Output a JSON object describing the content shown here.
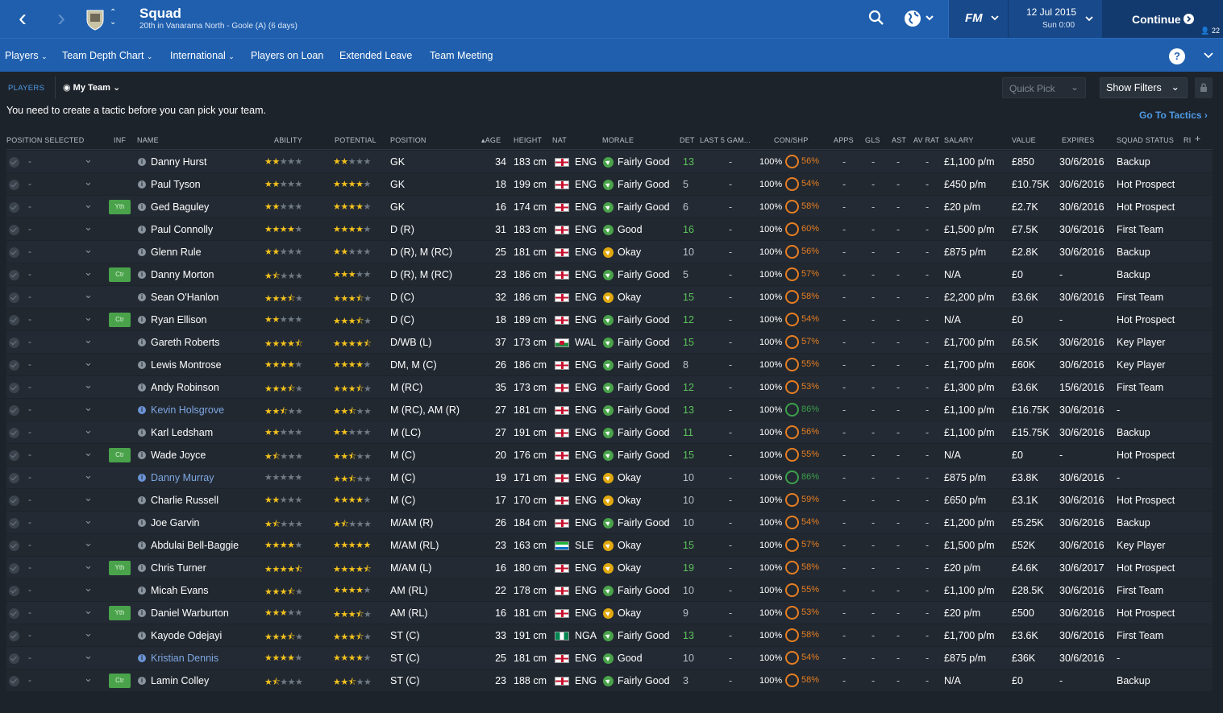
{
  "header": {
    "title": "Squad",
    "subtitle": "20th in Vanarama North - Goole (A) (6 days)",
    "fm_logo": "FM",
    "date": "12 Jul 2015",
    "time": "Sun 0:00",
    "continue_label": "Continue",
    "inbox_count": "22"
  },
  "subnav": {
    "items": [
      "Players",
      "Team Depth Chart",
      "International",
      "Players on Loan",
      "Extended Leave",
      "Team Meeting"
    ]
  },
  "toolbar": {
    "tab": "PLAYERS",
    "view": "My Team",
    "quick_pick": "Quick Pick",
    "show_filters": "Show Filters",
    "go_to_tactics": "Go To Tactics"
  },
  "notice": "You need to create a tactic before you can pick your team.",
  "columns": {
    "position_selected": "POSITION SELECTED",
    "inf": "INF",
    "name": "NAME",
    "ability": "ABILITY",
    "potential": "POTENTIAL",
    "position": "POSITION",
    "age": "AGE",
    "height": "HEIGHT",
    "nat": "NAT",
    "morale": "MORALE",
    "det": "DET",
    "last5": "LAST 5 GAM...",
    "conshp": "CON/SHP",
    "apps": "APPS",
    "gls": "GLS",
    "ast": "AST",
    "avrat": "AV RAT",
    "salary": "SALARY",
    "value": "VALUE",
    "expires": "EXPIRES",
    "squad_status": "SQUAD STATUS",
    "ri": "RI"
  },
  "players": [
    {
      "sel": "-",
      "tag": "",
      "name": "Danny Hurst",
      "loan": false,
      "ability": 2,
      "potential": 2,
      "position": "GK",
      "age": "34",
      "height": "183 cm",
      "flag": "eng",
      "nat": "ENG",
      "morale": "Fairly Good",
      "mood": "good",
      "det": "13",
      "last5": "-",
      "con": "100%",
      "shp": "56%",
      "shp_good": false,
      "apps": "-",
      "gls": "-",
      "ast": "-",
      "avrat": "-",
      "salary": "£1,100 p/m",
      "value": "£850",
      "expires": "30/6/2016",
      "status": "Backup"
    },
    {
      "sel": "-",
      "tag": "",
      "name": "Paul Tyson",
      "loan": false,
      "ability": 2,
      "potential": 4,
      "position": "GK",
      "age": "18",
      "height": "199 cm",
      "flag": "eng",
      "nat": "ENG",
      "morale": "Fairly Good",
      "mood": "good",
      "det": "5",
      "last5": "-",
      "con": "100%",
      "shp": "54%",
      "shp_good": false,
      "apps": "-",
      "gls": "-",
      "ast": "-",
      "avrat": "-",
      "salary": "£450 p/m",
      "value": "£10.75K",
      "expires": "30/6/2016",
      "status": "Hot Prospect"
    },
    {
      "sel": "-",
      "tag": "Yth",
      "name": "Ged Baguley",
      "loan": false,
      "ability": 2,
      "potential": 4,
      "position": "GK",
      "age": "16",
      "height": "174 cm",
      "flag": "eng",
      "nat": "ENG",
      "morale": "Fairly Good",
      "mood": "good",
      "det": "6",
      "last5": "-",
      "con": "100%",
      "shp": "58%",
      "shp_good": false,
      "apps": "-",
      "gls": "-",
      "ast": "-",
      "avrat": "-",
      "salary": "£20 p/m",
      "value": "£2.7K",
      "expires": "30/6/2016",
      "status": "Hot Prospect"
    },
    {
      "sel": "-",
      "tag": "",
      "name": "Paul Connolly",
      "loan": false,
      "ability": 4,
      "potential": 4,
      "position": "D (R)",
      "age": "31",
      "height": "183 cm",
      "flag": "eng",
      "nat": "ENG",
      "morale": "Good",
      "mood": "good",
      "det": "16",
      "last5": "-",
      "con": "100%",
      "shp": "60%",
      "shp_good": false,
      "apps": "-",
      "gls": "-",
      "ast": "-",
      "avrat": "-",
      "salary": "£1,500 p/m",
      "value": "£7.5K",
      "expires": "30/6/2016",
      "status": "First Team"
    },
    {
      "sel": "-",
      "tag": "",
      "name": "Glenn Rule",
      "loan": false,
      "ability": 2,
      "potential": 2,
      "position": "D (R), M (RC)",
      "age": "25",
      "height": "181 cm",
      "flag": "eng",
      "nat": "ENG",
      "morale": "Okay",
      "mood": "okay",
      "det": "10",
      "last5": "-",
      "con": "100%",
      "shp": "56%",
      "shp_good": false,
      "apps": "-",
      "gls": "-",
      "ast": "-",
      "avrat": "-",
      "salary": "£875 p/m",
      "value": "£2.8K",
      "expires": "30/6/2016",
      "status": "Backup"
    },
    {
      "sel": "-",
      "tag": "Ctr",
      "name": "Danny Morton",
      "loan": false,
      "ability": 1.5,
      "potential": 3,
      "position": "D (R), M (RC)",
      "age": "23",
      "height": "186 cm",
      "flag": "eng",
      "nat": "ENG",
      "morale": "Fairly Good",
      "mood": "good",
      "det": "5",
      "last5": "-",
      "con": "100%",
      "shp": "57%",
      "shp_good": false,
      "apps": "-",
      "gls": "-",
      "ast": "-",
      "avrat": "-",
      "salary": "N/A",
      "value": "£0",
      "expires": "-",
      "status": "Backup"
    },
    {
      "sel": "-",
      "tag": "",
      "name": "Sean O'Hanlon",
      "loan": false,
      "ability": 3.5,
      "potential": 3.5,
      "position": "D (C)",
      "age": "32",
      "height": "186 cm",
      "flag": "eng",
      "nat": "ENG",
      "morale": "Okay",
      "mood": "okay",
      "det": "15",
      "last5": "-",
      "con": "100%",
      "shp": "58%",
      "shp_good": false,
      "apps": "-",
      "gls": "-",
      "ast": "-",
      "avrat": "-",
      "salary": "£2,200 p/m",
      "value": "£3.6K",
      "expires": "30/6/2016",
      "status": "First Team"
    },
    {
      "sel": "-",
      "tag": "Ctr",
      "name": "Ryan Ellison",
      "loan": false,
      "ability": 2,
      "potential": 3.5,
      "position": "D (C)",
      "age": "18",
      "height": "189 cm",
      "flag": "eng",
      "nat": "ENG",
      "morale": "Fairly Good",
      "mood": "good",
      "det": "12",
      "last5": "-",
      "con": "100%",
      "shp": "54%",
      "shp_good": false,
      "apps": "-",
      "gls": "-",
      "ast": "-",
      "avrat": "-",
      "salary": "N/A",
      "value": "£0",
      "expires": "-",
      "status": "Hot Prospect"
    },
    {
      "sel": "-",
      "tag": "",
      "name": "Gareth Roberts",
      "loan": false,
      "ability": 4.5,
      "potential": 4.5,
      "position": "D/WB (L)",
      "age": "37",
      "height": "173 cm",
      "flag": "wal",
      "nat": "WAL",
      "morale": "Fairly Good",
      "mood": "good",
      "det": "15",
      "last5": "-",
      "con": "100%",
      "shp": "57%",
      "shp_good": false,
      "apps": "-",
      "gls": "-",
      "ast": "-",
      "avrat": "-",
      "salary": "£1,700 p/m",
      "value": "£6.5K",
      "expires": "30/6/2016",
      "status": "Key Player"
    },
    {
      "sel": "-",
      "tag": "",
      "name": "Lewis Montrose",
      "loan": false,
      "ability": 4,
      "potential": 4,
      "position": "DM, M (C)",
      "age": "26",
      "height": "186 cm",
      "flag": "eng",
      "nat": "ENG",
      "morale": "Fairly Good",
      "mood": "good",
      "det": "8",
      "last5": "-",
      "con": "100%",
      "shp": "55%",
      "shp_good": false,
      "apps": "-",
      "gls": "-",
      "ast": "-",
      "avrat": "-",
      "salary": "£1,700 p/m",
      "value": "£60K",
      "expires": "30/6/2016",
      "status": "Key Player"
    },
    {
      "sel": "-",
      "tag": "",
      "name": "Andy Robinson",
      "loan": false,
      "ability": 3.5,
      "potential": 3.5,
      "position": "M (RC)",
      "age": "35",
      "height": "173 cm",
      "flag": "eng",
      "nat": "ENG",
      "morale": "Fairly Good",
      "mood": "good",
      "det": "12",
      "last5": "-",
      "con": "100%",
      "shp": "53%",
      "shp_good": false,
      "apps": "-",
      "gls": "-",
      "ast": "-",
      "avrat": "-",
      "salary": "£1,300 p/m",
      "value": "£3.6K",
      "expires": "15/6/2016",
      "status": "First Team"
    },
    {
      "sel": "-",
      "tag": "",
      "name": "Kevin Holsgrove",
      "loan": true,
      "ability": 2.5,
      "potential": 2.5,
      "position": "M (RC), AM (R)",
      "age": "27",
      "height": "181 cm",
      "flag": "eng",
      "nat": "ENG",
      "morale": "Fairly Good",
      "mood": "good",
      "det": "13",
      "last5": "-",
      "con": "100%",
      "shp": "86%",
      "shp_good": true,
      "apps": "-",
      "gls": "-",
      "ast": "-",
      "avrat": "-",
      "salary": "£1,100 p/m",
      "value": "£16.75K",
      "expires": "30/6/2016",
      "status": "-"
    },
    {
      "sel": "-",
      "tag": "",
      "name": "Karl Ledsham",
      "loan": false,
      "ability": 2,
      "potential": 2,
      "position": "M (LC)",
      "age": "27",
      "height": "191 cm",
      "flag": "eng",
      "nat": "ENG",
      "morale": "Fairly Good",
      "mood": "good",
      "det": "11",
      "last5": "-",
      "con": "100%",
      "shp": "56%",
      "shp_good": false,
      "apps": "-",
      "gls": "-",
      "ast": "-",
      "avrat": "-",
      "salary": "£1,100 p/m",
      "value": "£15.75K",
      "expires": "30/6/2016",
      "status": "Backup"
    },
    {
      "sel": "-",
      "tag": "Ctr",
      "name": "Wade Joyce",
      "loan": false,
      "ability": 1.5,
      "potential": 2.5,
      "position": "M (C)",
      "age": "20",
      "height": "176 cm",
      "flag": "eng",
      "nat": "ENG",
      "morale": "Fairly Good",
      "mood": "good",
      "det": "15",
      "last5": "-",
      "con": "100%",
      "shp": "55%",
      "shp_good": false,
      "apps": "-",
      "gls": "-",
      "ast": "-",
      "avrat": "-",
      "salary": "N/A",
      "value": "£0",
      "expires": "-",
      "status": "Hot Prospect"
    },
    {
      "sel": "-",
      "tag": "",
      "name": "Danny Murray",
      "loan": true,
      "ability": 0,
      "potential": 2.5,
      "position": "M (C)",
      "age": "19",
      "height": "171 cm",
      "flag": "eng",
      "nat": "ENG",
      "morale": "Okay",
      "mood": "okay",
      "det": "10",
      "last5": "-",
      "con": "100%",
      "shp": "86%",
      "shp_good": true,
      "apps": "-",
      "gls": "-",
      "ast": "-",
      "avrat": "-",
      "salary": "£875 p/m",
      "value": "£3.8K",
      "expires": "30/6/2016",
      "status": "-"
    },
    {
      "sel": "-",
      "tag": "",
      "name": "Charlie Russell",
      "loan": false,
      "ability": 2,
      "potential": 4,
      "position": "M (C)",
      "age": "17",
      "height": "170 cm",
      "flag": "eng",
      "nat": "ENG",
      "morale": "Okay",
      "mood": "okay",
      "det": "10",
      "last5": "-",
      "con": "100%",
      "shp": "59%",
      "shp_good": false,
      "apps": "-",
      "gls": "-",
      "ast": "-",
      "avrat": "-",
      "salary": "£650 p/m",
      "value": "£3.1K",
      "expires": "30/6/2016",
      "status": "Hot Prospect"
    },
    {
      "sel": "-",
      "tag": "",
      "name": "Joe Garvin",
      "loan": false,
      "ability": 1.5,
      "potential": 1.5,
      "position": "M/AM (R)",
      "age": "26",
      "height": "184 cm",
      "flag": "eng",
      "nat": "ENG",
      "morale": "Fairly Good",
      "mood": "good",
      "det": "10",
      "last5": "-",
      "con": "100%",
      "shp": "54%",
      "shp_good": false,
      "apps": "-",
      "gls": "-",
      "ast": "-",
      "avrat": "-",
      "salary": "£1,200 p/m",
      "value": "£5.25K",
      "expires": "30/6/2016",
      "status": "Backup"
    },
    {
      "sel": "-",
      "tag": "",
      "name": "Abdulai Bell-Baggie",
      "loan": false,
      "ability": 4,
      "potential": 5,
      "position": "M/AM (RL)",
      "age": "23",
      "height": "163 cm",
      "flag": "sle",
      "nat": "SLE",
      "morale": "Okay",
      "mood": "okay",
      "det": "15",
      "last5": "-",
      "con": "100%",
      "shp": "57%",
      "shp_good": false,
      "apps": "-",
      "gls": "-",
      "ast": "-",
      "avrat": "-",
      "salary": "£1,500 p/m",
      "value": "£52K",
      "expires": "30/6/2016",
      "status": "Key Player"
    },
    {
      "sel": "-",
      "tag": "Yth",
      "name": "Chris Turner",
      "loan": false,
      "ability": 4.5,
      "potential": 4.5,
      "position": "M/AM (L)",
      "age": "16",
      "height": "180 cm",
      "flag": "eng",
      "nat": "ENG",
      "morale": "Okay",
      "mood": "okay",
      "det": "19",
      "last5": "-",
      "con": "100%",
      "shp": "58%",
      "shp_good": false,
      "apps": "-",
      "gls": "-",
      "ast": "-",
      "avrat": "-",
      "salary": "£20 p/m",
      "value": "£4.6K",
      "expires": "30/6/2017",
      "status": "Hot Prospect"
    },
    {
      "sel": "-",
      "tag": "",
      "name": "Micah Evans",
      "loan": false,
      "ability": 3.5,
      "potential": 4,
      "position": "AM (RL)",
      "age": "22",
      "height": "178 cm",
      "flag": "eng",
      "nat": "ENG",
      "morale": "Fairly Good",
      "mood": "good",
      "det": "10",
      "last5": "-",
      "con": "100%",
      "shp": "55%",
      "shp_good": false,
      "apps": "-",
      "gls": "-",
      "ast": "-",
      "avrat": "-",
      "salary": "£1,100 p/m",
      "value": "£28.5K",
      "expires": "30/6/2016",
      "status": "First Team"
    },
    {
      "sel": "-",
      "tag": "Yth",
      "name": "Daniel Warburton",
      "loan": false,
      "ability": 3,
      "potential": 3.5,
      "position": "AM (RL)",
      "age": "16",
      "height": "181 cm",
      "flag": "eng",
      "nat": "ENG",
      "morale": "Okay",
      "mood": "okay",
      "det": "9",
      "last5": "-",
      "con": "100%",
      "shp": "53%",
      "shp_good": false,
      "apps": "-",
      "gls": "-",
      "ast": "-",
      "avrat": "-",
      "salary": "£20 p/m",
      "value": "£500",
      "expires": "30/6/2016",
      "status": "Hot Prospect"
    },
    {
      "sel": "-",
      "tag": "",
      "name": "Kayode Odejayi",
      "loan": false,
      "ability": 3.5,
      "potential": 3.5,
      "position": "ST (C)",
      "age": "33",
      "height": "191 cm",
      "flag": "nga",
      "nat": "NGA",
      "morale": "Fairly Good",
      "mood": "good",
      "det": "13",
      "last5": "-",
      "con": "100%",
      "shp": "58%",
      "shp_good": false,
      "apps": "-",
      "gls": "-",
      "ast": "-",
      "avrat": "-",
      "salary": "£1,700 p/m",
      "value": "£3.6K",
      "expires": "30/6/2016",
      "status": "First Team"
    },
    {
      "sel": "-",
      "tag": "",
      "name": "Kristian Dennis",
      "loan": true,
      "ability": 4,
      "potential": 4,
      "position": "ST (C)",
      "age": "25",
      "height": "181 cm",
      "flag": "eng",
      "nat": "ENG",
      "morale": "Good",
      "mood": "good",
      "det": "10",
      "last5": "-",
      "con": "100%",
      "shp": "54%",
      "shp_good": false,
      "apps": "-",
      "gls": "-",
      "ast": "-",
      "avrat": "-",
      "salary": "£875 p/m",
      "value": "£36K",
      "expires": "30/6/2016",
      "status": "-"
    },
    {
      "sel": "-",
      "tag": "Ctr",
      "name": "Lamin Colley",
      "loan": false,
      "ability": 1.5,
      "potential": 2.5,
      "position": "ST (C)",
      "age": "23",
      "height": "188 cm",
      "flag": "eng",
      "nat": "ENG",
      "morale": "Fairly Good",
      "mood": "good",
      "det": "3",
      "last5": "-",
      "con": "100%",
      "shp": "58%",
      "shp_good": false,
      "apps": "-",
      "gls": "-",
      "ast": "-",
      "avrat": "-",
      "salary": "N/A",
      "value": "£0",
      "expires": "-",
      "status": "Backup"
    }
  ]
}
